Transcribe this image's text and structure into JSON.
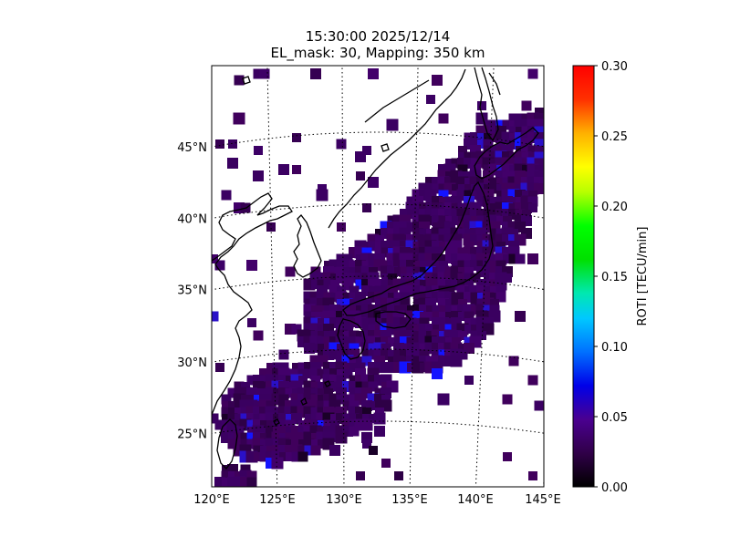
{
  "title": {
    "line1": "15:30:00 2025/12/14",
    "line2": "EL_mask: 30, Mapping: 350 km"
  },
  "map": {
    "lon_range": [
      120,
      145
    ],
    "lat_range": [
      20,
      49
    ],
    "lon_ticks": [
      "120°E",
      "125°E",
      "130°E",
      "135°E",
      "140°E",
      "145°E"
    ],
    "lat_ticks": [
      "25°N",
      "30°N",
      "35°N",
      "40°N",
      "45°N"
    ],
    "grid_style": "dotted",
    "coastline_color": "#000000",
    "region": "Japan and surrounding areas"
  },
  "colorbar": {
    "label": "ROTI [TECU/min]",
    "min": 0.0,
    "max": 0.3,
    "ticks": [
      "0.00",
      "0.05",
      "0.10",
      "0.15",
      "0.20",
      "0.25",
      "0.30"
    ],
    "colormap": "nipy_spectral-like",
    "colors": [
      "#000000",
      "#3a0060",
      "#0000ff",
      "#00ffff",
      "#00ff00",
      "#ffff00",
      "#ff0000"
    ]
  },
  "data_summary": {
    "dominant_value_range": [
      0.02,
      0.05
    ],
    "dominant_color": "#3c0060",
    "high_values_color": "#1e1eff"
  }
}
